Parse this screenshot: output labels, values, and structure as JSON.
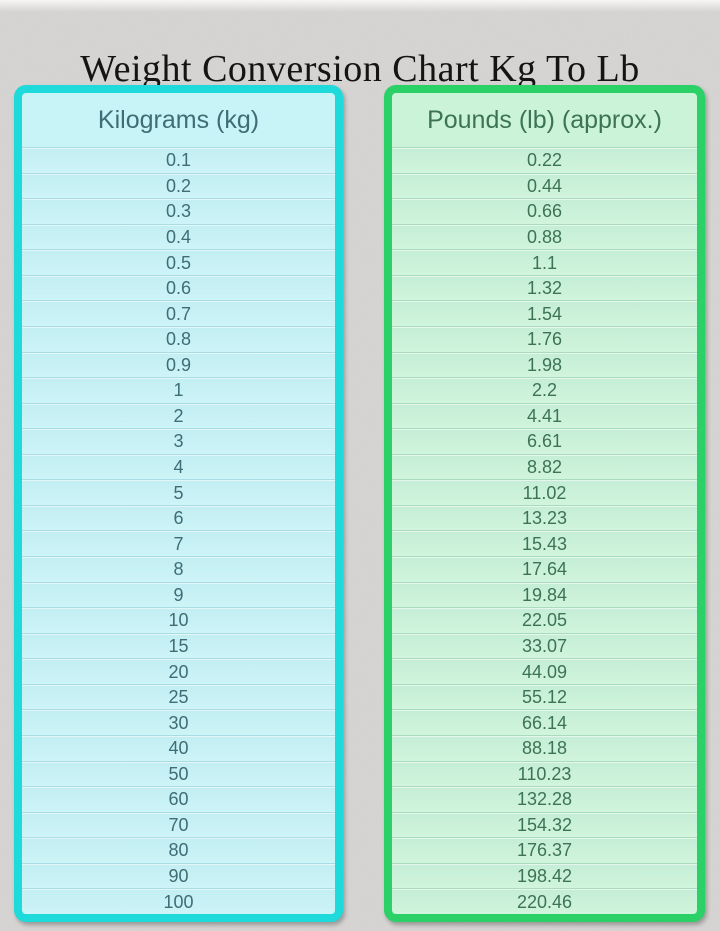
{
  "title": "Weight Conversion Chart Kg To Lb",
  "table": {
    "kg_header": "Kilograms (kg)",
    "lb_header": "Pounds (lb) (approx.)"
  },
  "chart_data": {
    "type": "table",
    "title": "Weight Conversion Chart Kg To Lb",
    "columns": [
      "Kilograms (kg)",
      "Pounds (lb) (approx.)"
    ],
    "rows": [
      [
        "0.1",
        "0.22"
      ],
      [
        "0.2",
        "0.44"
      ],
      [
        "0.3",
        "0.66"
      ],
      [
        "0.4",
        "0.88"
      ],
      [
        "0.5",
        "1.1"
      ],
      [
        "0.6",
        "1.32"
      ],
      [
        "0.7",
        "1.54"
      ],
      [
        "0.8",
        "1.76"
      ],
      [
        "0.9",
        "1.98"
      ],
      [
        "1",
        "2.2"
      ],
      [
        "2",
        "4.41"
      ],
      [
        "3",
        "6.61"
      ],
      [
        "4",
        "8.82"
      ],
      [
        "5",
        "11.02"
      ],
      [
        "6",
        "13.23"
      ],
      [
        "7",
        "15.43"
      ],
      [
        "8",
        "17.64"
      ],
      [
        "9",
        "19.84"
      ],
      [
        "10",
        "22.05"
      ],
      [
        "15",
        "33.07"
      ],
      [
        "20",
        "44.09"
      ],
      [
        "25",
        "55.12"
      ],
      [
        "30",
        "66.14"
      ],
      [
        "40",
        "88.18"
      ],
      [
        "50",
        "110.23"
      ],
      [
        "60",
        "132.28"
      ],
      [
        "70",
        "154.32"
      ],
      [
        "80",
        "176.37"
      ],
      [
        "90",
        "198.42"
      ],
      [
        "100",
        "220.46"
      ]
    ]
  },
  "colors": {
    "page_bg": "#dad8d6",
    "title_text": "#141414",
    "kg_border": "#1edadb",
    "kg_bg": "#c8f3f7",
    "kg_line": "#a9dde3",
    "kg_text": "#3e6d75",
    "lb_border": "#2bd166",
    "lb_bg": "#cbf3d8",
    "lb_line": "#a9dcbc",
    "lb_text": "#3d7355"
  }
}
